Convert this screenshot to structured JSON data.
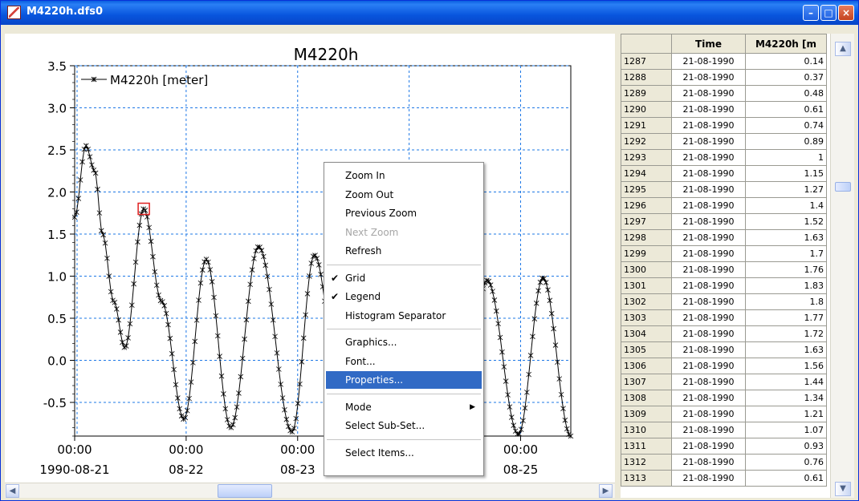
{
  "window": {
    "title": "M4220h.dfs0",
    "buttons": {
      "minimize": "–",
      "maximize": "□",
      "close": "×"
    }
  },
  "chart_data": {
    "type": "line",
    "title": "M4220h",
    "legend_label": "M4220h [meter]",
    "legend_position": "top-left",
    "grid": true,
    "ylim": [
      -0.9,
      3.5
    ],
    "yticks": [
      "3.5",
      "3.0",
      "2.5",
      "2.0",
      "1.5",
      "1.0",
      "0.5",
      "0.0",
      "-0.5"
    ],
    "ytick_values": [
      3.5,
      3.0,
      2.5,
      2.0,
      1.5,
      1.0,
      0.5,
      0.0,
      -0.5
    ],
    "xlim_days": [
      0,
      4.45
    ],
    "xticks": [
      {
        "day": 0,
        "time": "00:00",
        "date": "1990-08-21"
      },
      {
        "day": 1,
        "time": "00:00",
        "date": "08-22"
      },
      {
        "day": 2,
        "time": "00:00",
        "date": "08-23"
      },
      {
        "day": 3,
        "time": "00:00",
        "date": "08-24"
      },
      {
        "day": 4,
        "time": "00:00",
        "date": "08-25"
      }
    ],
    "anchors": [
      [
        0.0,
        1.7
      ],
      [
        0.1,
        2.55
      ],
      [
        0.18,
        2.25
      ],
      [
        0.25,
        1.5
      ],
      [
        0.35,
        0.7
      ],
      [
        0.45,
        0.15
      ],
      [
        0.62,
        1.8
      ],
      [
        0.78,
        0.7
      ],
      [
        0.98,
        -0.7
      ],
      [
        1.18,
        1.2
      ],
      [
        1.4,
        -0.8
      ],
      [
        1.65,
        1.35
      ],
      [
        1.95,
        -0.85
      ],
      [
        2.15,
        1.25
      ],
      [
        2.42,
        -0.85
      ],
      [
        2.68,
        1.05
      ],
      [
        2.95,
        -0.88
      ],
      [
        3.2,
        1.0
      ],
      [
        3.45,
        -0.88
      ],
      [
        3.7,
        0.95
      ],
      [
        3.98,
        -0.88
      ],
      [
        4.2,
        0.98
      ],
      [
        4.45,
        -0.9
      ]
    ],
    "marker_points": 260,
    "highlight_point": {
      "day": 0.62,
      "value": 1.8
    }
  },
  "context_menu": {
    "items": [
      {
        "label": "Zoom In"
      },
      {
        "label": "Zoom Out"
      },
      {
        "label": "Previous Zoom"
      },
      {
        "label": "Next Zoom",
        "disabled": true
      },
      {
        "label": "Refresh"
      },
      {
        "separator": true
      },
      {
        "label": "Grid",
        "checked": true
      },
      {
        "label": "Legend",
        "checked": true
      },
      {
        "label": "Histogram Separator"
      },
      {
        "separator": true
      },
      {
        "label": "Graphics..."
      },
      {
        "label": "Font..."
      },
      {
        "label": "Properties...",
        "selected": true
      },
      {
        "separator": true
      },
      {
        "label": "Mode",
        "submenu": true
      },
      {
        "label": "Select Sub-Set..."
      },
      {
        "separator": true
      },
      {
        "label": "Select Items..."
      }
    ]
  },
  "table": {
    "columns": [
      "",
      "Time",
      "M4220h [m"
    ],
    "rows": [
      [
        "1287",
        "21-08-1990",
        "0.14"
      ],
      [
        "1288",
        "21-08-1990",
        "0.37"
      ],
      [
        "1289",
        "21-08-1990",
        "0.48"
      ],
      [
        "1290",
        "21-08-1990",
        "0.61"
      ],
      [
        "1291",
        "21-08-1990",
        "0.74"
      ],
      [
        "1292",
        "21-08-1990",
        "0.89"
      ],
      [
        "1293",
        "21-08-1990",
        "1"
      ],
      [
        "1294",
        "21-08-1990",
        "1.15"
      ],
      [
        "1295",
        "21-08-1990",
        "1.27"
      ],
      [
        "1296",
        "21-08-1990",
        "1.4"
      ],
      [
        "1297",
        "21-08-1990",
        "1.52"
      ],
      [
        "1298",
        "21-08-1990",
        "1.63"
      ],
      [
        "1299",
        "21-08-1990",
        "1.7"
      ],
      [
        "1300",
        "21-08-1990",
        "1.76"
      ],
      [
        "1301",
        "21-08-1990",
        "1.83"
      ],
      [
        "1302",
        "21-08-1990",
        "1.8"
      ],
      [
        "1303",
        "21-08-1990",
        "1.77"
      ],
      [
        "1304",
        "21-08-1990",
        "1.72"
      ],
      [
        "1305",
        "21-08-1990",
        "1.63"
      ],
      [
        "1306",
        "21-08-1990",
        "1.56"
      ],
      [
        "1307",
        "21-08-1990",
        "1.44"
      ],
      [
        "1308",
        "21-08-1990",
        "1.34"
      ],
      [
        "1309",
        "21-08-1990",
        "1.21"
      ],
      [
        "1310",
        "21-08-1990",
        "1.07"
      ],
      [
        "1311",
        "21-08-1990",
        "0.93"
      ],
      [
        "1312",
        "21-08-1990",
        "0.76"
      ],
      [
        "1313",
        "21-08-1990",
        "0.61"
      ]
    ]
  },
  "scrollbars": {
    "left_arrow": "◀",
    "right_arrow": "▶",
    "up_arrow": "▲",
    "down_arrow": "▼"
  }
}
